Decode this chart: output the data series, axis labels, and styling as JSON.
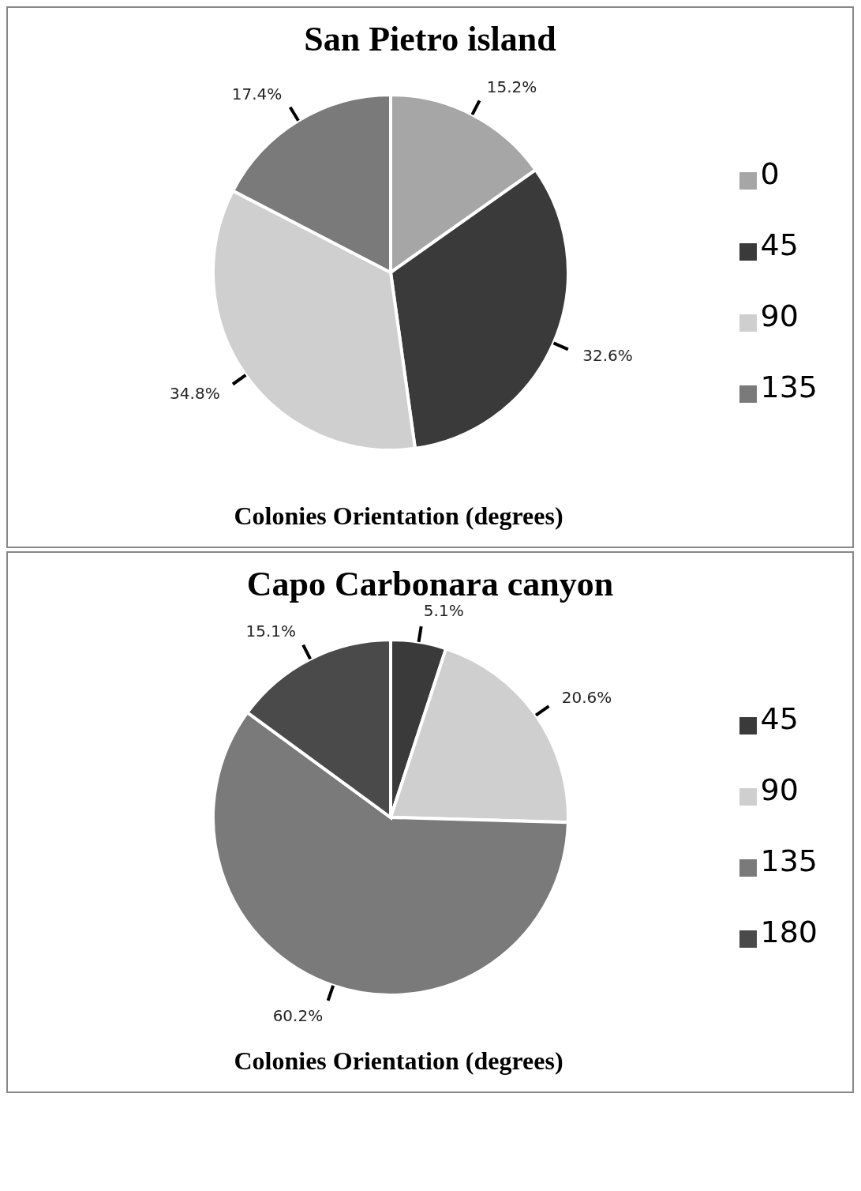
{
  "chart_data": [
    {
      "type": "pie",
      "title": "San Pietro island",
      "xlabel": "Colonies Orientation (degrees)",
      "categories": [
        "0",
        "45",
        "90",
        "135"
      ],
      "values": [
        15.2,
        32.6,
        34.8,
        17.4
      ],
      "value_labels": [
        "15.2%",
        "32.6%",
        "34.8%",
        "17.4%"
      ],
      "colors": [
        "#a6a6a6",
        "#3a3a3a",
        "#cfcfcf",
        "#7a7a7a"
      ],
      "legend": "right"
    },
    {
      "type": "pie",
      "title": "Capo Carbonara canyon",
      "xlabel": "Colonies Orientation (degrees)",
      "categories": [
        "45",
        "90",
        "135",
        "180"
      ],
      "values": [
        5.1,
        20.6,
        60.2,
        15.1
      ],
      "value_labels": [
        "5.1%",
        "20.6%",
        "60.2%",
        "15.1%"
      ],
      "colors": [
        "#3a3a3a",
        "#cfcfcf",
        "#7a7a7a",
        "#4a4a4a"
      ],
      "legend": "right"
    }
  ]
}
